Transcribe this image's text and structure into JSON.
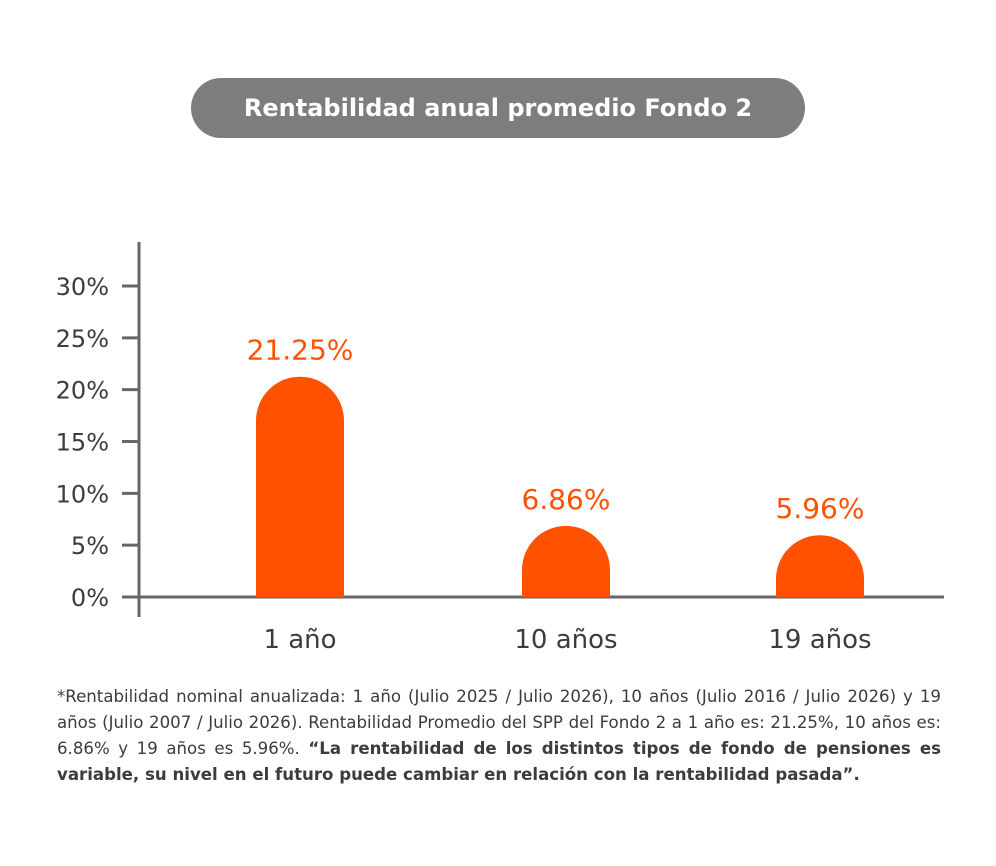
{
  "title": "Rentabilidad anual promedio Fondo 2",
  "colors": {
    "bar": "#ff5100",
    "axis": "#666666",
    "text": "#3c3c3c",
    "pill": "#7b7d7f"
  },
  "chart_data": {
    "type": "bar",
    "title": "Rentabilidad anual promedio Fondo 2",
    "categories": [
      "1 año",
      "10 años",
      "19 años"
    ],
    "values": [
      21.25,
      6.86,
      5.96
    ],
    "value_labels": [
      "21.25%",
      "6.86%",
      "5.96%"
    ],
    "y_ticks": [
      "0%",
      "5%",
      "10%",
      "15%",
      "20%",
      "25%",
      "30%"
    ],
    "ylim": [
      0,
      30
    ],
    "grid": false
  },
  "footnote": {
    "text": "*Rentabilidad nominal anualizada: 1 año (Julio 2025 / Julio 2026), 10 años (Julio 2016 / Julio 2026) y 19 años (Julio 2007 / Julio 2026). Rentabilidad Promedio del SPP del Fondo 2 a 1 año es: 21.25%, 10 años es: 6.86% y 19 años es 5.96%. ",
    "bold": "“La rentabilidad de los distintos tipos de fondo de pensiones es variable, su nivel en el futuro puede cambiar en relación con la rentabilidad pasada”."
  }
}
